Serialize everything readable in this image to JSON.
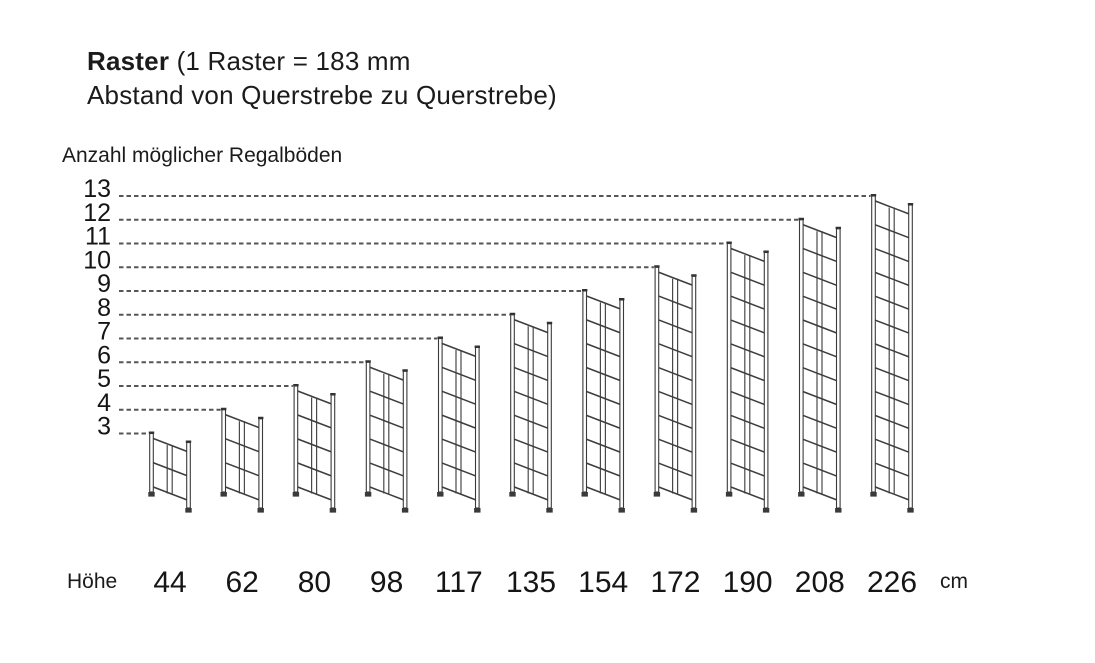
{
  "title": {
    "bold": "Raster",
    "rest": " (1 Raster = 183 mm",
    "line2": "Abstand von Querstrebe zu Querstrebe)"
  },
  "y_axis_label": "Anzahl möglicher Regalböden",
  "x_axis": {
    "label": "Höhe",
    "unit": "cm"
  },
  "chart_data": {
    "type": "bar",
    "title": "Raster (1 Raster = 183 mm Abstand von Querstrebe zu Querstrebe)",
    "xlabel": "Höhe (cm)",
    "ylabel": "Anzahl möglicher Regalböden",
    "categories": [
      44,
      62,
      80,
      98,
      117,
      135,
      154,
      172,
      190,
      208,
      226
    ],
    "values": [
      3,
      4,
      5,
      6,
      7,
      8,
      9,
      10,
      11,
      12,
      13
    ],
    "y_ticks": [
      13,
      12,
      11,
      10,
      9,
      8,
      7,
      6,
      5,
      4,
      3
    ],
    "ylim": [
      3,
      13
    ],
    "grid": "dashed horizontal line from each y tick to the top of the matching rack frame",
    "legend": "none",
    "mark_style": "each value drawn as a shelving ladder frame with (value - 1) raster sections"
  }
}
